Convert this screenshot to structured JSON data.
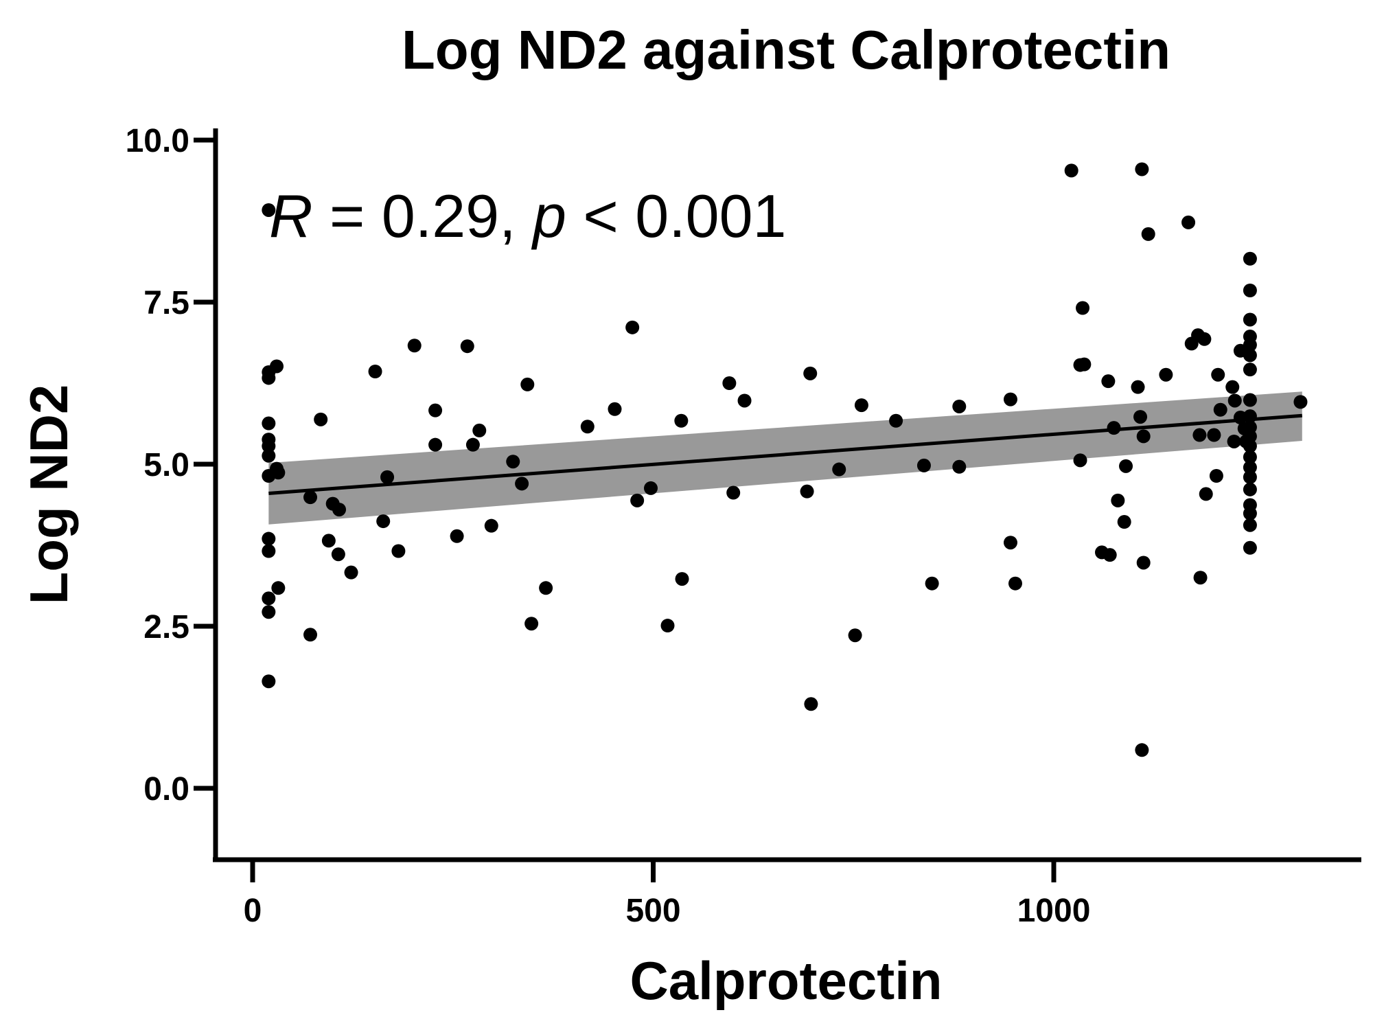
{
  "chart_data": {
    "type": "scatter",
    "title": "Log ND2 against Calprotectin",
    "xlabel": "Calprotectin",
    "ylabel": "Log ND2",
    "xlim": [
      -50,
      1380
    ],
    "ylim": [
      -1.1,
      10.2
    ],
    "x_ticks": [
      0,
      500,
      1000
    ],
    "y_ticks": [
      0.0,
      2.5,
      5.0,
      7.5,
      10.0
    ],
    "x_tick_labels": [
      "0",
      "500",
      "1000"
    ],
    "y_tick_labels": [
      "0.0",
      "2.5",
      "5.0",
      "7.5",
      "10.0"
    ],
    "annotation": {
      "r_symbol": "R",
      "r_text": " = 0.29, ",
      "p_symbol": "p",
      "p_text": " < 0.001"
    },
    "colors": {
      "points": "#000000",
      "fit_line": "#000000",
      "confidence_band": "#999999"
    },
    "regression": {
      "x_range": [
        20,
        1310
      ],
      "line_y": [
        4.55,
        5.75
      ],
      "band_lower": [
        4.07,
        5.36
      ],
      "band_upper": [
        5.02,
        6.12
      ]
    },
    "points": [
      {
        "x": 20,
        "y": 8.92
      },
      {
        "x": 20,
        "y": 6.42
      },
      {
        "x": 20,
        "y": 6.33
      },
      {
        "x": 20,
        "y": 5.63
      },
      {
        "x": 20,
        "y": 5.38
      },
      {
        "x": 20,
        "y": 5.28
      },
      {
        "x": 20,
        "y": 5.13
      },
      {
        "x": 20,
        "y": 4.82
      },
      {
        "x": 20,
        "y": 3.85
      },
      {
        "x": 20,
        "y": 3.66
      },
      {
        "x": 20,
        "y": 2.93
      },
      {
        "x": 20,
        "y": 2.72
      },
      {
        "x": 20,
        "y": 1.65
      },
      {
        "x": 30,
        "y": 6.51
      },
      {
        "x": 30,
        "y": 4.93
      },
      {
        "x": 32,
        "y": 4.87
      },
      {
        "x": 32,
        "y": 3.09
      },
      {
        "x": 72,
        "y": 4.49
      },
      {
        "x": 72,
        "y": 2.37
      },
      {
        "x": 85,
        "y": 5.69
      },
      {
        "x": 95,
        "y": 3.82
      },
      {
        "x": 100,
        "y": 4.39
      },
      {
        "x": 107,
        "y": 3.61
      },
      {
        "x": 108,
        "y": 4.3
      },
      {
        "x": 123,
        "y": 3.33
      },
      {
        "x": 153,
        "y": 6.43
      },
      {
        "x": 163,
        "y": 4.12
      },
      {
        "x": 168,
        "y": 4.8
      },
      {
        "x": 182,
        "y": 3.66
      },
      {
        "x": 202,
        "y": 6.83
      },
      {
        "x": 228,
        "y": 5.83
      },
      {
        "x": 228,
        "y": 5.3
      },
      {
        "x": 255,
        "y": 3.89
      },
      {
        "x": 268,
        "y": 6.82
      },
      {
        "x": 275,
        "y": 5.3
      },
      {
        "x": 283,
        "y": 5.52
      },
      {
        "x": 298,
        "y": 4.05
      },
      {
        "x": 325,
        "y": 5.04
      },
      {
        "x": 336,
        "y": 4.7
      },
      {
        "x": 343,
        "y": 6.23
      },
      {
        "x": 348,
        "y": 2.54
      },
      {
        "x": 366,
        "y": 3.09
      },
      {
        "x": 418,
        "y": 5.58
      },
      {
        "x": 452,
        "y": 5.85
      },
      {
        "x": 474,
        "y": 7.11
      },
      {
        "x": 480,
        "y": 4.44
      },
      {
        "x": 497,
        "y": 4.63
      },
      {
        "x": 518,
        "y": 2.51
      },
      {
        "x": 535,
        "y": 5.67
      },
      {
        "x": 536,
        "y": 3.23
      },
      {
        "x": 595,
        "y": 6.25
      },
      {
        "x": 600,
        "y": 4.56
      },
      {
        "x": 614,
        "y": 5.98
      },
      {
        "x": 692,
        "y": 4.58
      },
      {
        "x": 696,
        "y": 6.4
      },
      {
        "x": 697,
        "y": 1.3
      },
      {
        "x": 732,
        "y": 4.92
      },
      {
        "x": 752,
        "y": 2.36
      },
      {
        "x": 760,
        "y": 5.91
      },
      {
        "x": 803,
        "y": 5.67
      },
      {
        "x": 838,
        "y": 4.98
      },
      {
        "x": 848,
        "y": 3.16
      },
      {
        "x": 882,
        "y": 5.89
      },
      {
        "x": 882,
        "y": 4.96
      },
      {
        "x": 946,
        "y": 6.0
      },
      {
        "x": 946,
        "y": 3.79
      },
      {
        "x": 952,
        "y": 3.16
      },
      {
        "x": 1022,
        "y": 9.53
      },
      {
        "x": 1033,
        "y": 6.53
      },
      {
        "x": 1033,
        "y": 5.06
      },
      {
        "x": 1036,
        "y": 7.41
      },
      {
        "x": 1038,
        "y": 6.54
      },
      {
        "x": 1060,
        "y": 3.64
      },
      {
        "x": 1068,
        "y": 6.28
      },
      {
        "x": 1070,
        "y": 3.6
      },
      {
        "x": 1075,
        "y": 5.56
      },
      {
        "x": 1080,
        "y": 4.44
      },
      {
        "x": 1088,
        "y": 4.11
      },
      {
        "x": 1090,
        "y": 4.97
      },
      {
        "x": 1105,
        "y": 6.19
      },
      {
        "x": 1108,
        "y": 5.73
      },
      {
        "x": 1110,
        "y": 0.59
      },
      {
        "x": 1110,
        "y": 9.55
      },
      {
        "x": 1112,
        "y": 3.48
      },
      {
        "x": 1112,
        "y": 5.43
      },
      {
        "x": 1118,
        "y": 8.55
      },
      {
        "x": 1140,
        "y": 6.38
      },
      {
        "x": 1168,
        "y": 8.73
      },
      {
        "x": 1172,
        "y": 6.86
      },
      {
        "x": 1180,
        "y": 6.99
      },
      {
        "x": 1182,
        "y": 5.45
      },
      {
        "x": 1183,
        "y": 3.25
      },
      {
        "x": 1188,
        "y": 6.93
      },
      {
        "x": 1190,
        "y": 4.54
      },
      {
        "x": 1200,
        "y": 5.45
      },
      {
        "x": 1203,
        "y": 4.82
      },
      {
        "x": 1205,
        "y": 6.38
      },
      {
        "x": 1208,
        "y": 5.84
      },
      {
        "x": 1223,
        "y": 6.19
      },
      {
        "x": 1225,
        "y": 5.35
      },
      {
        "x": 1226,
        "y": 5.98
      },
      {
        "x": 1233,
        "y": 6.75
      },
      {
        "x": 1233,
        "y": 5.72
      },
      {
        "x": 1238,
        "y": 5.55
      },
      {
        "x": 1240,
        "y": 5.35
      },
      {
        "x": 1245,
        "y": 8.17
      },
      {
        "x": 1245,
        "y": 7.68
      },
      {
        "x": 1245,
        "y": 7.23
      },
      {
        "x": 1245,
        "y": 6.97
      },
      {
        "x": 1245,
        "y": 6.84
      },
      {
        "x": 1245,
        "y": 6.68
      },
      {
        "x": 1245,
        "y": 6.46
      },
      {
        "x": 1245,
        "y": 5.99
      },
      {
        "x": 1245,
        "y": 5.74
      },
      {
        "x": 1245,
        "y": 5.57
      },
      {
        "x": 1245,
        "y": 5.43
      },
      {
        "x": 1245,
        "y": 5.28
      },
      {
        "x": 1245,
        "y": 5.11
      },
      {
        "x": 1245,
        "y": 4.95
      },
      {
        "x": 1245,
        "y": 4.8
      },
      {
        "x": 1245,
        "y": 4.61
      },
      {
        "x": 1245,
        "y": 4.37
      },
      {
        "x": 1245,
        "y": 4.24
      },
      {
        "x": 1245,
        "y": 4.06
      },
      {
        "x": 1245,
        "y": 3.71
      },
      {
        "x": 1308,
        "y": 5.96
      }
    ]
  }
}
